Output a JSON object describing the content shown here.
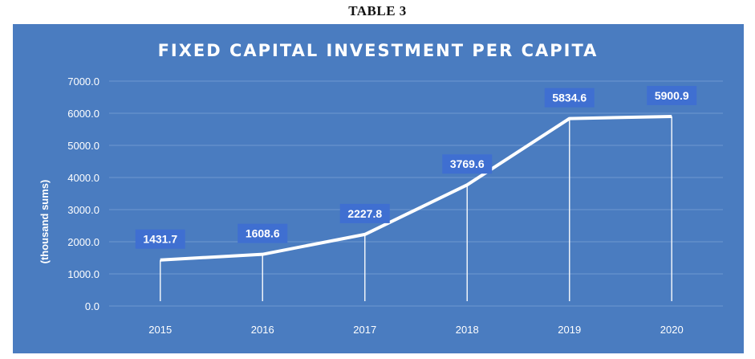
{
  "caption": "TABLE 3",
  "colors": {
    "panel_background": "#4a7cc0",
    "gridline": "#6f97cf",
    "series_line": "#ffffff",
    "label_box": "#3f6fd1",
    "text": "#ffffff"
  },
  "chart_data": {
    "type": "line",
    "title": "FIXED CAPITAL INVESTMENT PER CAPITA",
    "ylabel": "(thousand sums)",
    "xlabel": "",
    "categories": [
      "2015",
      "2016",
      "2017",
      "2018",
      "2019",
      "2020"
    ],
    "series": [
      {
        "values": [
          1431.7,
          1608.6,
          2227.8,
          3769.6,
          5834.6,
          5900.9
        ]
      }
    ],
    "data_labels": [
      "1431.7",
      "1608.6",
      "2227.8",
      "3769.6",
      "5834.6",
      "5900.9"
    ],
    "ylim": [
      0,
      7000
    ],
    "yticks": [
      "0.0",
      "1000.0",
      "2000.0",
      "3000.0",
      "4000.0",
      "5000.0",
      "6000.0",
      "7000.0"
    ],
    "grid": true,
    "drop_lines": true
  }
}
